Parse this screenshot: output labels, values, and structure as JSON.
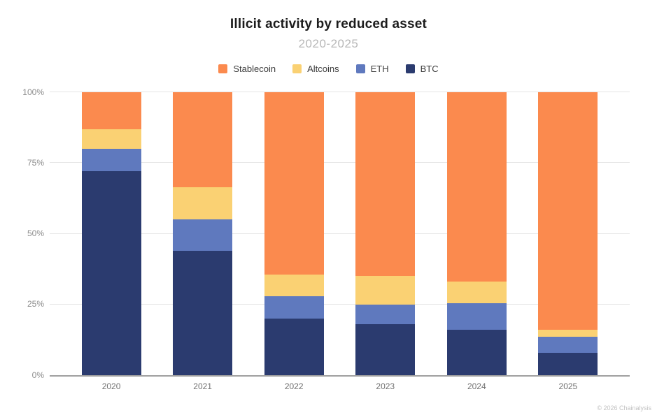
{
  "header": {
    "title": "Illicit activity by reduced asset",
    "subtitle": "2020-2025"
  },
  "footer": {
    "credit": "© 2026 Chainalysis"
  },
  "chart_data": {
    "type": "bar",
    "stacked": true,
    "title": "Illicit activity by reduced asset",
    "subtitle": "2020-2025",
    "categories": [
      "2020",
      "2021",
      "2022",
      "2023",
      "2024",
      "2025"
    ],
    "series": [
      {
        "name": "Stablecoin",
        "color": "#FB8A4E",
        "values": [
          13,
          33.5,
          64.5,
          65,
          67,
          84
        ]
      },
      {
        "name": "Altcoins",
        "color": "#FAD173",
        "values": [
          7,
          11.5,
          7.5,
          10,
          7.5,
          2.5
        ]
      },
      {
        "name": "ETH",
        "color": "#5F79BE",
        "values": [
          8,
          11,
          8,
          7,
          9.5,
          5.5
        ]
      },
      {
        "name": "BTC",
        "color": "#2B3B6F",
        "values": [
          72,
          44,
          20,
          18,
          16,
          8
        ]
      }
    ],
    "xlabel": "",
    "ylabel": "",
    "ylim": [
      0,
      100
    ],
    "unit": "%",
    "yticks": [
      "100%",
      "75%",
      "50%",
      "25%",
      "0%"
    ],
    "grid": true,
    "legend_position": "top",
    "grid_color": "#e6e6e6",
    "axis_color": "#a0a0a0"
  }
}
